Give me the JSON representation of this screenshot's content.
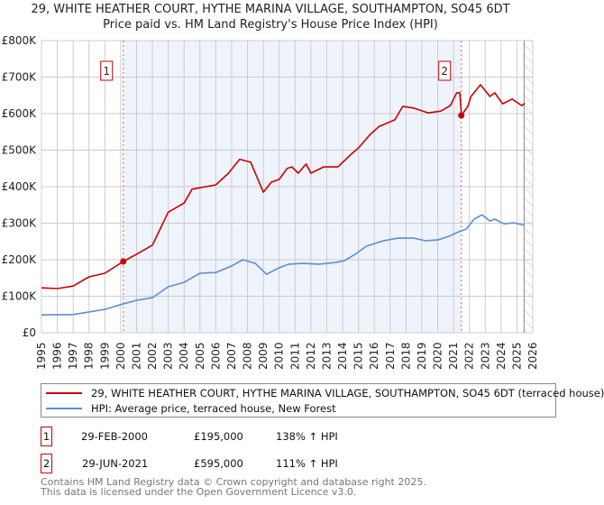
{
  "title": "29, WHITE HEATHER COURT, HYTHE MARINA VILLAGE, SOUTHAMPTON, SO45 6DT",
  "subtitle": "Price paid vs. HM Land Registry's House Price Index (HPI)",
  "colors": {
    "price": "#cc0000",
    "hpi": "#5b8fd0",
    "shade": "#eef3fc",
    "grid": "#cccccc"
  },
  "chart_data": {
    "type": "line",
    "title": "29, WHITE HEATHER COURT, HYTHE MARINA VILLAGE, SOUTHAMPTON, SO45 6DT",
    "xlabel": "",
    "ylabel": "",
    "xlim": [
      1995,
      2026
    ],
    "ylim": [
      0,
      800000
    ],
    "grid": true,
    "legend_position": "bottom",
    "y_ticks": [
      "£0",
      "£100K",
      "£200K",
      "£300K",
      "£400K",
      "£500K",
      "£600K",
      "£700K",
      "£800K"
    ],
    "x_ticks": [
      "1995",
      "1996",
      "1997",
      "1998",
      "1999",
      "2000",
      "2001",
      "2002",
      "2003",
      "2004",
      "2005",
      "2006",
      "2007",
      "2008",
      "2009",
      "2010",
      "2011",
      "2012",
      "2013",
      "2014",
      "2015",
      "2016",
      "2017",
      "2018",
      "2019",
      "2020",
      "2021",
      "2022",
      "2023",
      "2024",
      "2025",
      "2026"
    ],
    "series": [
      {
        "name": "29, WHITE HEATHER COURT, HYTHE MARINA VILLAGE, SOUTHAMPTON, SO45 6DT (terraced house)",
        "x": [
          1995,
          1996,
          1997,
          1998,
          1999,
          2000.16,
          2001,
          2002,
          2003,
          2004,
          2004.5,
          2005,
          2006,
          2006.8,
          2007.5,
          2008.2,
          2009,
          2009.5,
          2010,
          2010.5,
          2010.8,
          2011.2,
          2011.7,
          2012,
          2012.8,
          2013.7,
          2014.6,
          2015,
          2015.7,
          2016.3,
          2017.3,
          2017.8,
          2018.5,
          2019.4,
          2020.2,
          2020.8,
          2021.2,
          2021.4,
          2021.5,
          2021.9,
          2022.1,
          2022.7,
          2023.3,
          2023.6,
          2024.1,
          2024.7,
          2025.3,
          2025.5
        ],
        "values": [
          123000,
          121000,
          128000,
          153000,
          163000,
          195000,
          215000,
          240000,
          330000,
          355000,
          393000,
          397000,
          405000,
          437000,
          475000,
          467000,
          385000,
          412000,
          420000,
          450000,
          454000,
          437000,
          462000,
          437000,
          454000,
          454000,
          491000,
          506000,
          541000,
          565000,
          583000,
          620000,
          615000,
          602000,
          607000,
          622000,
          657000,
          657000,
          595000,
          620000,
          647000,
          679000,
          647000,
          657000,
          627000,
          640000,
          622000,
          628000
        ]
      },
      {
        "name": "HPI: Average price, terraced house, New Forest",
        "x": [
          1995,
          1997,
          1998,
          1999,
          2000,
          2001,
          2002,
          2003,
          2004,
          2005,
          2006,
          2007,
          2007.7,
          2008.5,
          2009.2,
          2010,
          2010.6,
          2011.5,
          2012.5,
          2013.5,
          2014.1,
          2014.8,
          2015.5,
          2016.6,
          2017.5,
          2018.5,
          2019.2,
          2020,
          2020.7,
          2021.3,
          2021.8,
          2022.3,
          2022.8,
          2023.3,
          2023.6,
          2024.2,
          2024.8,
          2025.5
        ],
        "values": [
          49000,
          50000,
          57000,
          64000,
          77000,
          89000,
          96000,
          126000,
          138000,
          163000,
          165000,
          183000,
          200000,
          190000,
          160000,
          178000,
          188000,
          190000,
          188000,
          192000,
          197000,
          215000,
          237000,
          252000,
          259000,
          259000,
          252000,
          254000,
          264000,
          276000,
          284000,
          311000,
          323000,
          306000,
          311000,
          298000,
          301000,
          294000
        ]
      }
    ],
    "annotations": [
      {
        "label": "1",
        "x": 2000.16,
        "value": 195000
      },
      {
        "label": "2",
        "x": 2021.49,
        "value": 595000
      }
    ],
    "shaded_range": [
      2000.16,
      2021.49
    ],
    "hatched_from": 2025.45
  },
  "legend": {
    "price_label": "29, WHITE HEATHER COURT, HYTHE MARINA VILLAGE, SOUTHAMPTON, SO45 6DT (terraced house)",
    "hpi_label": "HPI: Average price, terraced house, New Forest"
  },
  "sales": [
    {
      "num": "1",
      "date": "29-FEB-2000",
      "price": "£195,000",
      "hpi": "138% ↑ HPI"
    },
    {
      "num": "2",
      "date": "29-JUN-2021",
      "price": "£595,000",
      "hpi": "111% ↑ HPI"
    }
  ],
  "footer": {
    "line1": "Contains HM Land Registry data © Crown copyright and database right 2025.",
    "line2": "This data is licensed under the Open Government Licence v3.0."
  }
}
